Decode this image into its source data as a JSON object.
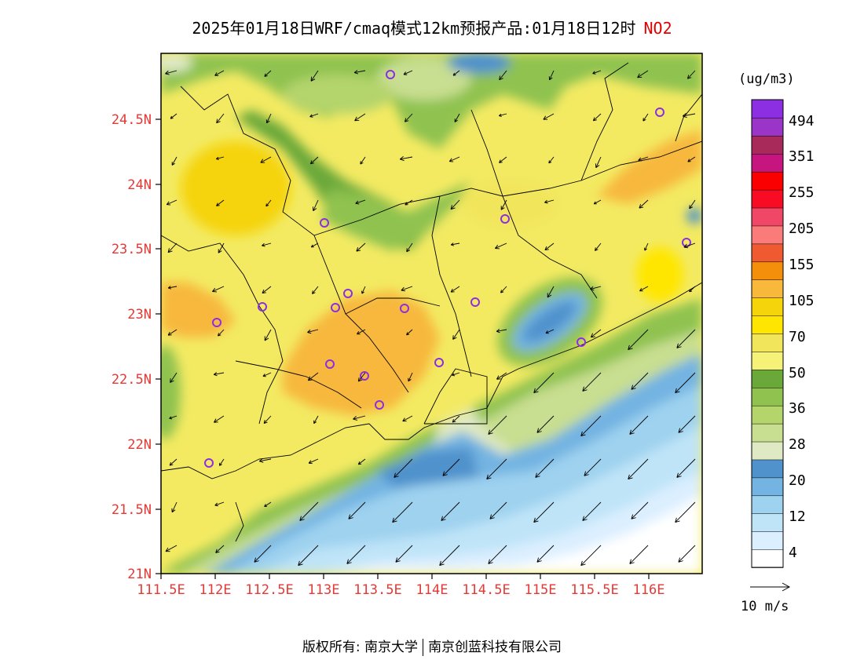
{
  "title": {
    "main": "2025年01月18日WRF/cmaq模式12km预报产品:01月18日12时",
    "pollutant": "NO2"
  },
  "map": {
    "lon_ticks": [
      "111.5E",
      "112E",
      "112.5E",
      "113E",
      "113.5E",
      "114E",
      "114.5E",
      "115E",
      "115.5E",
      "116E"
    ],
    "lat_ticks": [
      "24.5N",
      "24N",
      "23.5N",
      "23N",
      "22.5N",
      "22N",
      "21.5N",
      "21N"
    ]
  },
  "legend": {
    "unit": "(ug/m3)",
    "colors": [
      "#ffffff",
      "#dcefff",
      "#bfe4f8",
      "#9ed2ef",
      "#73b4e2",
      "#4f92cc",
      "#dfe9c3",
      "#c8de90",
      "#b4d46c",
      "#8fc24f",
      "#6aa83a",
      "#f6f277",
      "#f1e55c",
      "#ffe600",
      "#f5d40c",
      "#f7b83c",
      "#f38f0b",
      "#ef5a31",
      "#f97b7a",
      "#f04766",
      "#f80c24",
      "#fb0000",
      "#c7157f",
      "#a72a5b",
      "#9a35c8",
      "#8c2fe2"
    ],
    "labels": [
      "494",
      "351",
      "255",
      "205",
      "155",
      "105",
      "70",
      "50",
      "36",
      "28",
      "20",
      "12",
      "4"
    ]
  },
  "wind": {
    "label": "10 m/s"
  },
  "footer": {
    "left": "版权所有: 南京大学",
    "right": "南京创蓝科技有限公司"
  }
}
